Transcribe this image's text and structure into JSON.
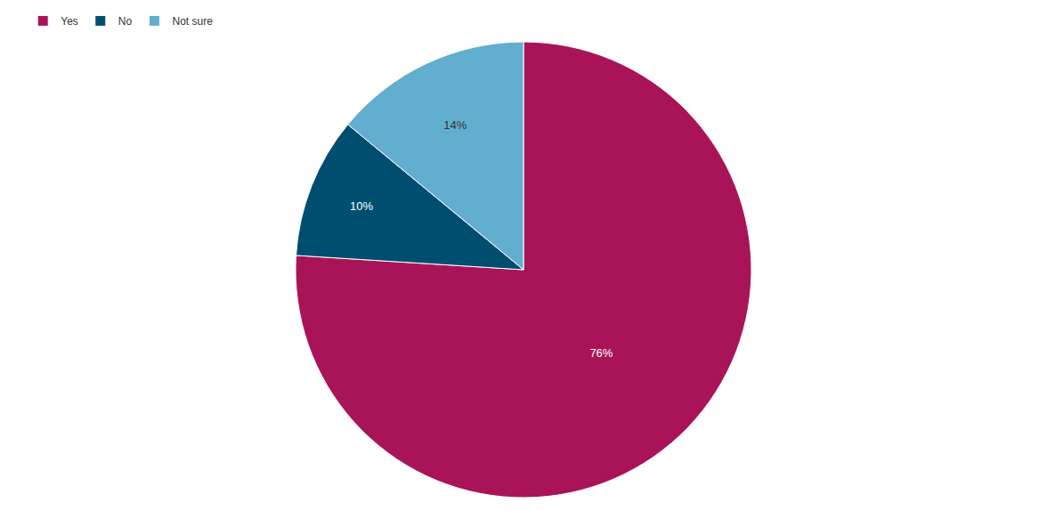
{
  "chart_data": {
    "type": "pie",
    "categories": [
      "Yes",
      "No",
      "Not sure"
    ],
    "values": [
      76,
      10,
      14
    ],
    "value_labels": [
      "76%",
      "10%",
      "14%"
    ],
    "colors": [
      "#a91458",
      "#004e6f",
      "#62aece"
    ],
    "data_labels": true,
    "legend": "top-left"
  }
}
